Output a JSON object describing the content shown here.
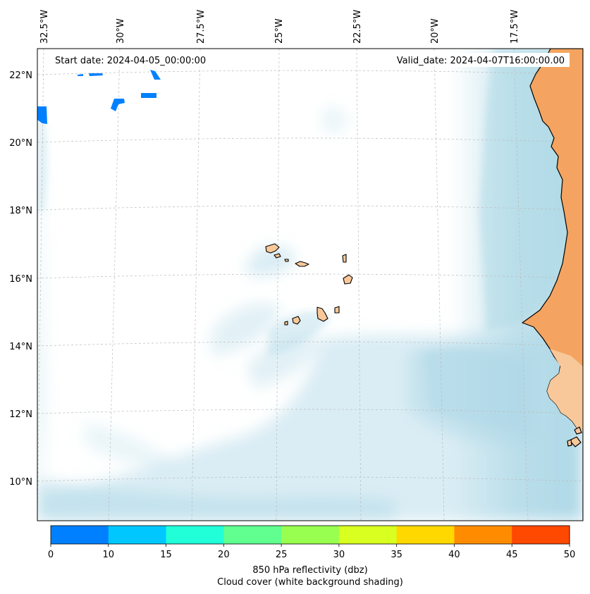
{
  "map": {
    "header": {
      "start_date": "Start date: 2024-04-05_00:00:00",
      "valid_date": "Valid_date: 2024-04-07T16:00:00.00"
    },
    "longitude_ticks": [
      "32.5°W",
      "30°W",
      "27.5°W",
      "25°W",
      "22.5°W",
      "20°W",
      "17.5°W"
    ],
    "latitude_ticks": [
      "22°N",
      "20°N",
      "18°N",
      "16°N",
      "14°N",
      "12°N",
      "10°N"
    ],
    "colors": {
      "ocean": "#ffffff",
      "cloud": "#add8e6",
      "land": "#f4a460",
      "land_light": "#f8c89a",
      "reflectivity_blue": "#0080ff",
      "coast": "#000000"
    }
  },
  "colorbar": {
    "colors": [
      "#0080ff",
      "#00c8ff",
      "#20ffd8",
      "#60ff90",
      "#98ff50",
      "#d8ff20",
      "#ffd800",
      "#ff8c00",
      "#ff4800"
    ],
    "ticks": [
      "0",
      "10",
      "15",
      "20",
      "25",
      "30",
      "35",
      "40",
      "45",
      "50"
    ],
    "label_line1": "850 hPa reflectivity (dbz)",
    "label_line2": "Cloud cover (white background shading)"
  }
}
